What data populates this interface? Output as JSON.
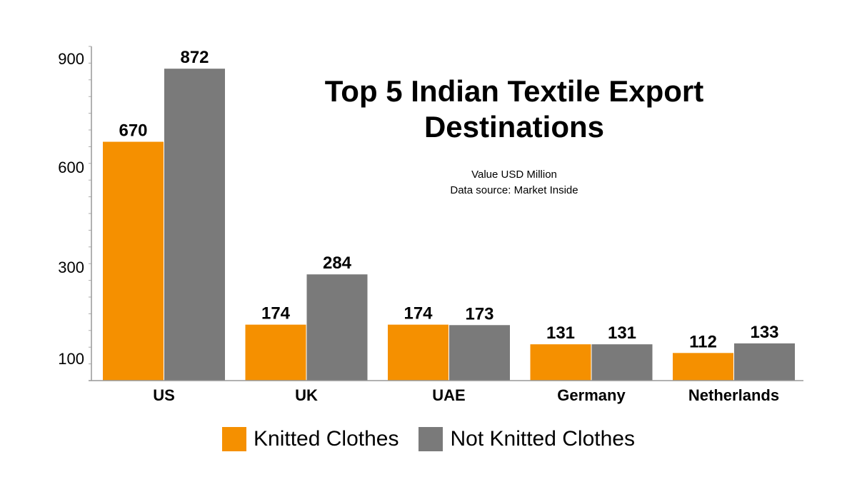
{
  "chart_data": {
    "type": "bar",
    "title_line1": "Top 5 Indian Textile Export",
    "title_line2": "Destinations",
    "subtitle_line1": "Value USD Million",
    "subtitle_line2": "Data source: Market Inside",
    "categories": [
      "US",
      "UK",
      "UAE",
      "Germany",
      "Netherlands"
    ],
    "series": [
      {
        "name": "Knitted Clothes",
        "color": "#F59000",
        "values": [
          670,
          174,
          174,
          131,
          112
        ]
      },
      {
        "name": "Not Knitted Clothes",
        "color": "#7A7A7A",
        "values": [
          872,
          284,
          173,
          131,
          133
        ]
      }
    ],
    "y_ticks": [
      {
        "label": "900",
        "value": 900
      },
      {
        "label": "600",
        "value": 600
      },
      {
        "label": "300",
        "value": 300
      },
      {
        "label": "100",
        "value": 100
      }
    ],
    "ylim": [
      50,
      900
    ],
    "legend_position": "bottom-center"
  }
}
